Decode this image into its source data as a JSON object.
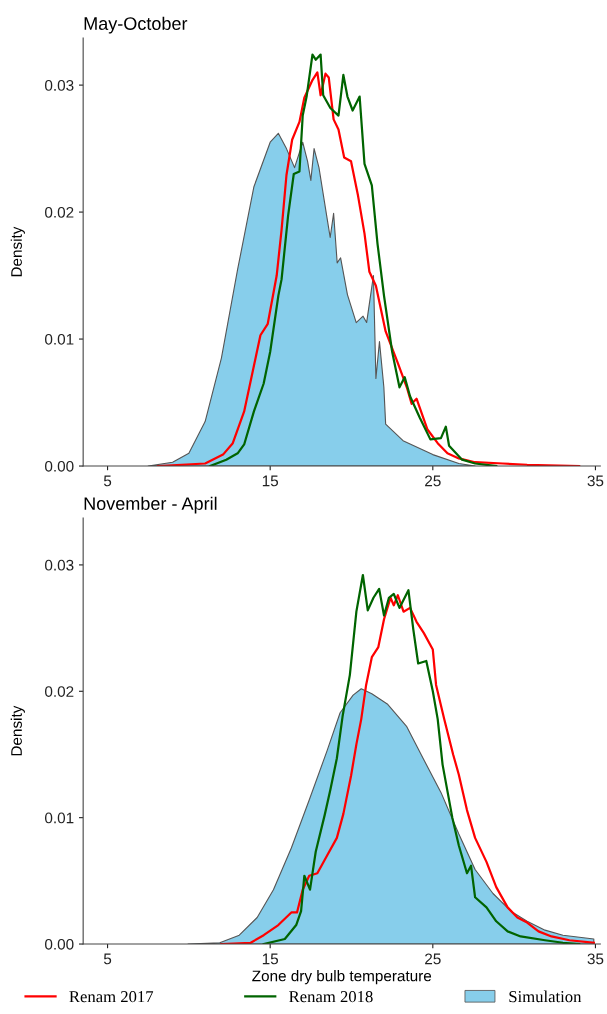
{
  "chart_data": [
    {
      "type": "line",
      "title": "May-October",
      "ylabel": "Density",
      "xlim": [
        3.5,
        35.3
      ],
      "ylim": [
        0,
        0.0337
      ],
      "xticks": [
        5,
        15,
        25,
        35
      ],
      "yticks": [
        {
          "value": 0,
          "label": "0.00"
        },
        {
          "value": 0.01,
          "label": "0.01"
        },
        {
          "value": 0.02,
          "label": "0.02"
        },
        {
          "value": 0.03,
          "label": "0.03"
        }
      ],
      "grid": false,
      "legend": "bottom",
      "series": [
        {
          "name": "Simulation",
          "type": "area",
          "color": "#87ceeb",
          "x": [
            7.5,
            9,
            10,
            11,
            12,
            13,
            14,
            15,
            15.5,
            16,
            16.5,
            17,
            17.3,
            17.5,
            17.7,
            18,
            18.5,
            18.69,
            18.9,
            19.12,
            19.33,
            19.75,
            20.29,
            20.71,
            20.93,
            21.35,
            21.5,
            21.72,
            21.99,
            22.1,
            23.17,
            25,
            26.6,
            27.6
          ],
          "values": [
            0,
            0.0003,
            0.001,
            0.0035,
            0.0085,
            0.0155,
            0.022,
            0.0255,
            0.0262,
            0.025,
            0.0235,
            0.0255,
            0.024,
            0.0225,
            0.025,
            0.0235,
            0.0195,
            0.018,
            0.0199,
            0.016,
            0.0164,
            0.0135,
            0.0113,
            0.0118,
            0.0113,
            0.015,
            0.0069,
            0.0098,
            0.0062,
            0.0033,
            0.002,
            0.0009,
            0.0002,
            0
          ]
        },
        {
          "name": "Renam 2017",
          "type": "line",
          "color": "#ff0000",
          "x": [
            8.1,
            11,
            12.1,
            12.7,
            13.4,
            14.0,
            14.4,
            14.85,
            15.4,
            15.7,
            16.0,
            16.35,
            16.8,
            17.1,
            17.6,
            17.9,
            18.1,
            18.4,
            18.6,
            18.9,
            19.2,
            19.55,
            19.97,
            20.4,
            20.8,
            21.1,
            21.5,
            22.1,
            22.85,
            23.4,
            23.7,
            24.0,
            24.66,
            25.3,
            25.9,
            26.6,
            27.6,
            29.3,
            30.8,
            34.0
          ],
          "values": [
            0,
            0.0002,
            0.0009,
            0.0018,
            0.0043,
            0.0079,
            0.0103,
            0.0112,
            0.015,
            0.0186,
            0.0229,
            0.0257,
            0.0271,
            0.029,
            0.0304,
            0.031,
            0.0292,
            0.0309,
            0.0306,
            0.0273,
            0.0265,
            0.0243,
            0.024,
            0.0213,
            0.0183,
            0.0153,
            0.0142,
            0.0106,
            0.0081,
            0.0062,
            0.0049,
            0.0053,
            0.0029,
            0.0018,
            0.001,
            0.0006,
            0.0003,
            0.0002,
            0.0001,
            0
          ]
        },
        {
          "name": "Renam 2018",
          "type": "line",
          "color": "#006400",
          "x": [
            11.3,
            12.3,
            13.0,
            13.4,
            14.0,
            14.6,
            15.0,
            15.5,
            15.7,
            16.1,
            16.45,
            16.8,
            17.0,
            17.24,
            17.6,
            17.8,
            18.1,
            18.26,
            18.7,
            19.2,
            19.5,
            19.75,
            20.07,
            20.5,
            20.8,
            21.25,
            21.6,
            22.0,
            22.5,
            22.95,
            23.27,
            23.6,
            24.2,
            24.85,
            25.5,
            25.8,
            26.0,
            26.8,
            27.6,
            28.9
          ],
          "values": [
            0,
            0.0005,
            0.001,
            0.0017,
            0.0043,
            0.0065,
            0.009,
            0.0134,
            0.0147,
            0.0197,
            0.023,
            0.0232,
            0.0276,
            0.0291,
            0.0324,
            0.032,
            0.0324,
            0.0292,
            0.0282,
            0.0276,
            0.0308,
            0.0291,
            0.028,
            0.0291,
            0.0238,
            0.0221,
            0.0175,
            0.0134,
            0.009,
            0.0062,
            0.007,
            0.0055,
            0.0038,
            0.0021,
            0.0022,
            0.0031,
            0.0016,
            0.0005,
            0.0002,
            0
          ]
        }
      ]
    },
    {
      "type": "line",
      "title": "November - April",
      "xlabel": "Zone dry bulb temperature",
      "ylabel": "Density",
      "xlim": [
        3.5,
        35.3
      ],
      "ylim": [
        0,
        0.0337
      ],
      "xticks": [
        5,
        15,
        25,
        35
      ],
      "yticks": [
        {
          "value": 0,
          "label": "0.00"
        },
        {
          "value": 0.01,
          "label": "0.01"
        },
        {
          "value": 0.02,
          "label": "0.02"
        },
        {
          "value": 0.03,
          "label": "0.03"
        }
      ],
      "grid": false,
      "legend": "bottom",
      "series": [
        {
          "name": "Simulation",
          "type": "area",
          "color": "#87ceeb",
          "x": [
            9.95,
            11.9,
            13.1,
            14.2,
            15.2,
            16.3,
            17.4,
            18.5,
            19.3,
            20.1,
            20.6,
            21.25,
            22.2,
            23.4,
            24.4,
            25.5,
            26.6,
            27.6,
            28.7,
            29.8,
            30.8,
            31.9,
            33.0,
            34.9
          ],
          "values": [
            0,
            0.0001,
            0.0007,
            0.0021,
            0.0043,
            0.0076,
            0.0114,
            0.0153,
            0.0183,
            0.0197,
            0.0202,
            0.0198,
            0.019,
            0.0172,
            0.0147,
            0.012,
            0.0087,
            0.0059,
            0.004,
            0.0026,
            0.0018,
            0.0011,
            0.0007,
            0.0004
          ]
        },
        {
          "name": "Renam 2017",
          "type": "line",
          "color": "#ff0000",
          "x": [
            12.0,
            13.8,
            14.6,
            15.5,
            16.3,
            16.65,
            17.0,
            17.4,
            17.9,
            18.5,
            19.1,
            19.5,
            19.97,
            20.3,
            20.6,
            20.9,
            21.25,
            21.65,
            22.0,
            22.4,
            22.6,
            22.85,
            23.2,
            23.6,
            24.0,
            24.45,
            25.0,
            25.2,
            25.7,
            26.25,
            26.6,
            27.1,
            27.6,
            28.3,
            28.9,
            29.6,
            30.2,
            30.8,
            31.5,
            32.3,
            33.4,
            34.9
          ],
          "values": [
            0,
            0.0001,
            0.0007,
            0.0015,
            0.0025,
            0.0025,
            0.0043,
            0.0054,
            0.0056,
            0.007,
            0.0084,
            0.0103,
            0.0133,
            0.0158,
            0.0178,
            0.0205,
            0.0227,
            0.0235,
            0.0257,
            0.0274,
            0.0268,
            0.0276,
            0.0263,
            0.0266,
            0.0255,
            0.0246,
            0.0233,
            0.0205,
            0.0178,
            0.015,
            0.0134,
            0.0106,
            0.0084,
            0.0065,
            0.0045,
            0.0029,
            0.0021,
            0.0017,
            0.001,
            0.0006,
            0.0003,
            0.0001
          ]
        },
        {
          "name": "Renam 2018",
          "type": "line",
          "color": "#006400",
          "x": [
            14.6,
            15.9,
            16.6,
            16.9,
            17.1,
            17.45,
            17.8,
            18.35,
            18.7,
            19.1,
            19.45,
            19.9,
            20.3,
            20.7,
            21.0,
            21.35,
            21.7,
            22.0,
            22.3,
            22.6,
            22.95,
            23.5,
            23.8,
            24.1,
            24.6,
            25.0,
            25.3,
            25.6,
            26.2,
            26.6,
            27.1,
            27.35,
            27.6,
            28.3,
            28.9,
            29.6,
            30.4,
            31.9,
            33.0,
            34.0
          ],
          "values": [
            0,
            0.0004,
            0.0015,
            0.0026,
            0.0054,
            0.0043,
            0.0073,
            0.0102,
            0.0122,
            0.0147,
            0.018,
            0.0213,
            0.0263,
            0.0292,
            0.0264,
            0.0274,
            0.0281,
            0.026,
            0.0274,
            0.0277,
            0.0266,
            0.028,
            0.0249,
            0.0222,
            0.0224,
            0.02,
            0.0178,
            0.0142,
            0.01,
            0.0078,
            0.0056,
            0.0062,
            0.0037,
            0.0029,
            0.0018,
            0.001,
            0.0006,
            0.0003,
            0.0001,
            0
          ]
        }
      ]
    }
  ]
}
